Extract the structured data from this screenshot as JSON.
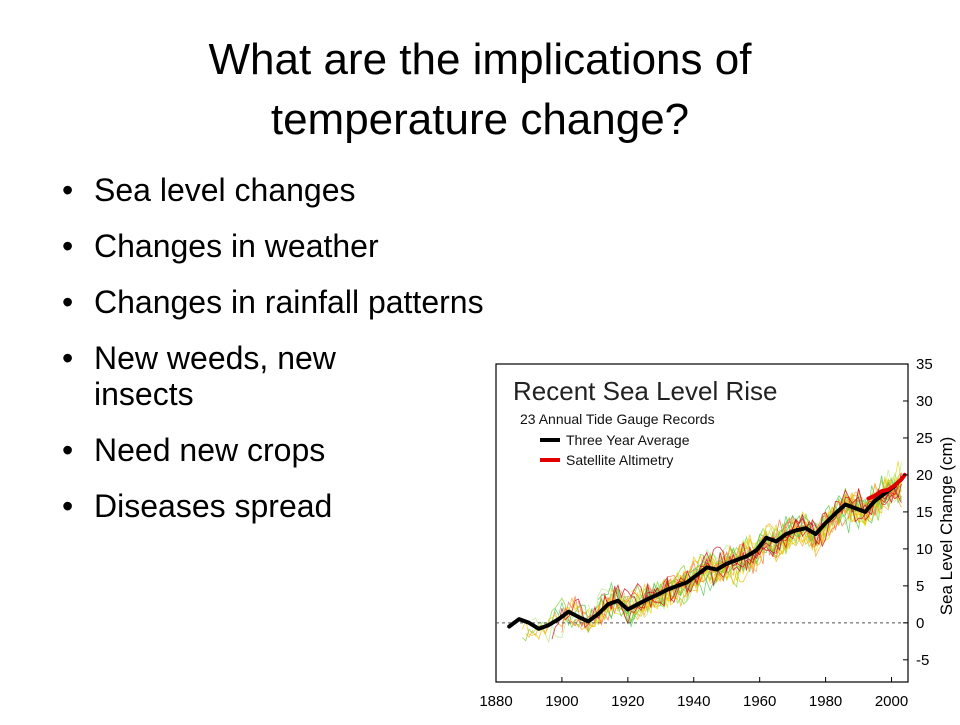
{
  "slide": {
    "title": "What are the implications of temperature change?",
    "bullets": [
      "Sea level changes",
      "Changes in weather",
      "Changes in rainfall patterns",
      "New weeds, new insects",
      "Need new crops",
      "Diseases spread"
    ]
  },
  "chart_data": {
    "type": "line",
    "title": "Recent Sea Level Rise",
    "subtitle": "23 Annual Tide Gauge Records",
    "ylabel": "Sea Level Change (cm)",
    "xlabel": "",
    "xlim": [
      1880,
      2005
    ],
    "ylim": [
      -8,
      35
    ],
    "x_ticks": [
      1880,
      1900,
      1920,
      1940,
      1960,
      1980,
      2000
    ],
    "y_ticks": [
      -5,
      0,
      5,
      10,
      15,
      20,
      25,
      30,
      35
    ],
    "y_axis_side": "right",
    "zero_line": "dashed",
    "legend": [
      {
        "name": "Three Year Average",
        "color": "#000000"
      },
      {
        "name": "Satellite Altimetry",
        "color": "#e00000"
      }
    ],
    "legend_position": "top-left",
    "series": [
      {
        "name": "Three Year Average",
        "color": "#000000",
        "x": [
          1884,
          1887,
          1890,
          1893,
          1896,
          1899,
          1902,
          1905,
          1908,
          1911,
          1914,
          1917,
          1920,
          1923,
          1926,
          1929,
          1932,
          1935,
          1938,
          1941,
          1944,
          1947,
          1950,
          1953,
          1956,
          1959,
          1962,
          1965,
          1968,
          1971,
          1974,
          1977,
          1980,
          1983,
          1986,
          1989,
          1992,
          1995,
          1998,
          2001
        ],
        "values": [
          -0.5,
          0.5,
          0,
          -0.8,
          -0.3,
          0.5,
          1.5,
          0.8,
          0.2,
          1.2,
          2.5,
          3.0,
          1.8,
          2.5,
          3.2,
          3.8,
          4.5,
          5.0,
          5.5,
          6.5,
          7.5,
          7.2,
          8.0,
          8.5,
          9.0,
          9.8,
          11.5,
          11.0,
          12.0,
          12.5,
          12.8,
          12.0,
          13.5,
          14.8,
          16.0,
          15.5,
          15.0,
          16.5,
          17.5,
          18.5
        ]
      },
      {
        "name": "Satellite Altimetry",
        "color": "#e00000",
        "x": [
          1993,
          1995,
          1997,
          1999,
          2001,
          2003,
          2004
        ],
        "values": [
          16.8,
          17.2,
          17.8,
          18.0,
          18.6,
          19.4,
          20.0
        ]
      }
    ],
    "tide_gauge_colors": [
      "#f5a623",
      "#7ed321",
      "#e6d800",
      "#ff6a3d",
      "#b8e986",
      "#50c850",
      "#f0c000",
      "#d0021b"
    ]
  }
}
